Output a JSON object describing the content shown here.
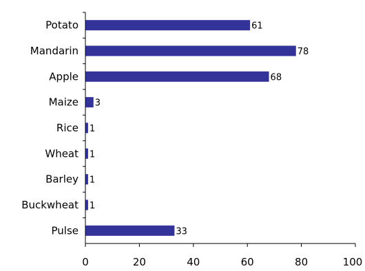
{
  "chart_data": {
    "type": "bar",
    "orientation": "horizontal",
    "categories": [
      "Potato",
      "Mandarin",
      "Apple",
      "Maize",
      "Rice",
      "Wheat",
      "Barley",
      "Buckwheat",
      "Pulse"
    ],
    "values": [
      61,
      78,
      68,
      3,
      1,
      1,
      1,
      1,
      33
    ],
    "data_labels": [
      "61",
      "78",
      "68",
      "3",
      "1",
      "1",
      "1",
      "1",
      "33"
    ],
    "xlim": [
      0,
      100
    ],
    "xticks": [
      0,
      20,
      40,
      60,
      80,
      100
    ],
    "xtick_labels": [
      "0",
      "20",
      "40",
      "60",
      "80",
      "100"
    ],
    "grid": false,
    "legend": "none",
    "colors": {
      "bar": "#333399",
      "axis": "#000000"
    }
  }
}
